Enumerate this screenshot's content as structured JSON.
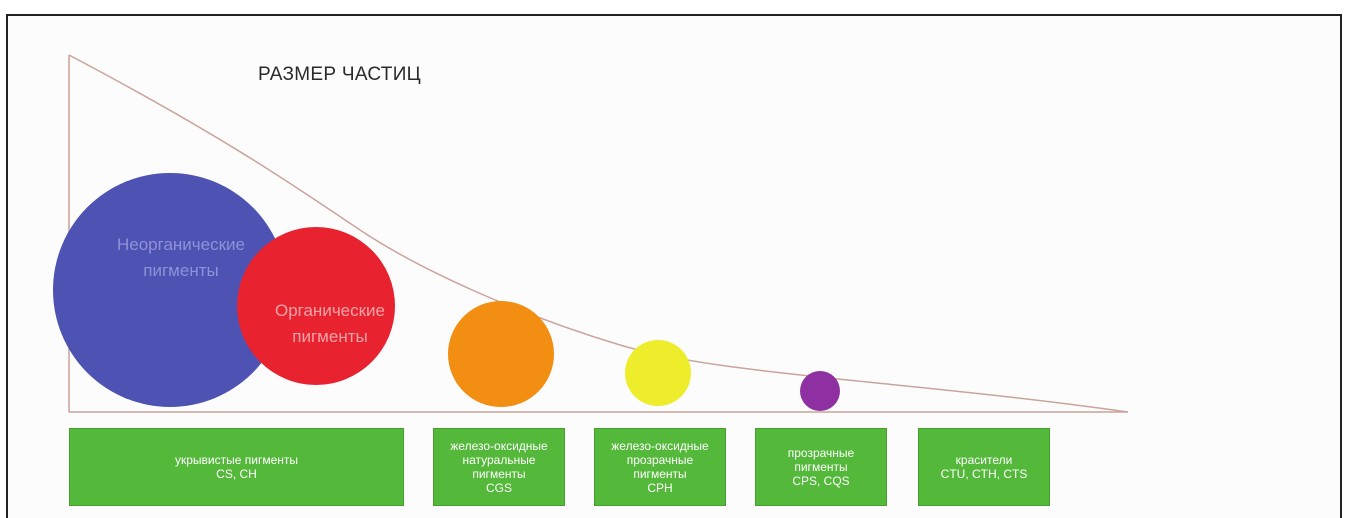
{
  "title": "РАЗМЕР ЧАСТИЦ",
  "colors": {
    "inorganic": "#4d52b3",
    "organic": "#e8232f",
    "orange": "#f28e12",
    "yellow": "#eded2b",
    "purple": "#8e2fa2",
    "box": "#54b83a",
    "axis": "#caa49a"
  },
  "circles": [
    {
      "id": "inorganic",
      "label_line1": "Неорганические",
      "label_line2": "пигменты"
    },
    {
      "id": "organic",
      "label_line1": "Органические",
      "label_line2": "пигменты"
    },
    {
      "id": "orange"
    },
    {
      "id": "yellow"
    },
    {
      "id": "purple"
    }
  ],
  "boxes": [
    {
      "text": "укрывистые пигменты\nCS, CH"
    },
    {
      "text": "железо-оксидные\nнатуральные\nпигменты\nCGS"
    },
    {
      "text": "железо-оксидные\nпрозрачные\nпигменты\nCPH"
    },
    {
      "text": "прозрачные\nпигменты\nCPS, CQS"
    },
    {
      "text": "красители\nCTU, CTH, CTS"
    }
  ]
}
